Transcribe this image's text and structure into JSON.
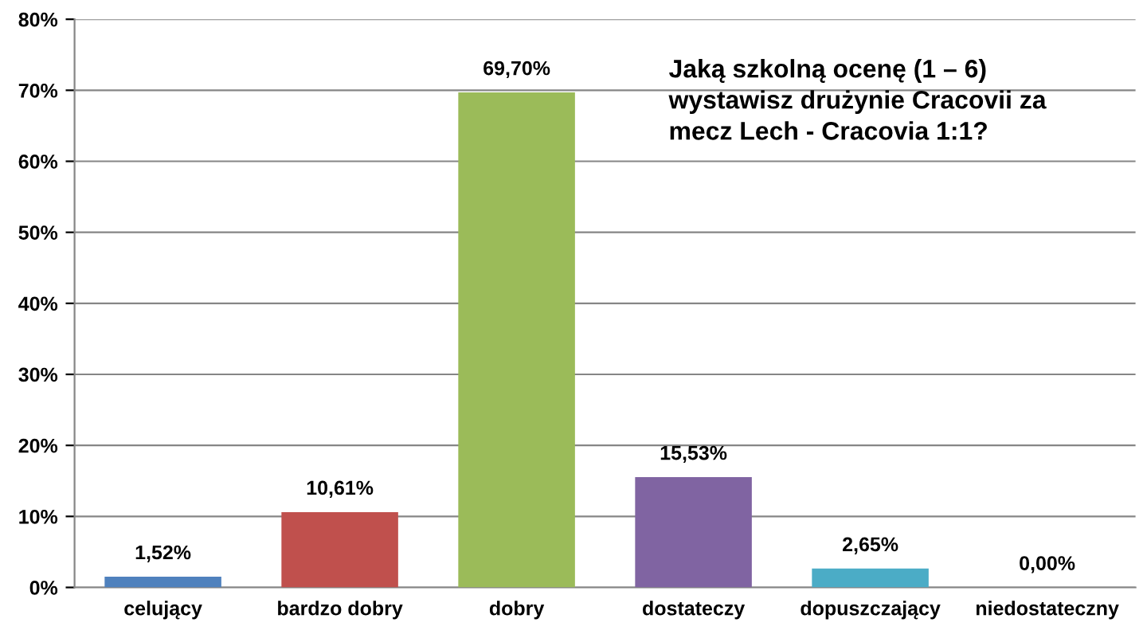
{
  "chart_data": {
    "type": "bar",
    "title": "Jaką szkolną ocenę (1 – 6)\nwystawisz drużynie Cracovii za\nmecz Lech - Cracovia 1:1?",
    "categories": [
      "celujący",
      "bardzo dobry",
      "dobry",
      "dostateczy",
      "dopuszczający",
      "niedostateczny"
    ],
    "values": [
      1.52,
      10.61,
      69.7,
      15.53,
      2.65,
      0
    ],
    "colors": [
      "#4f81bd",
      "#c0504d",
      "#9bbb59",
      "#8064a2",
      "#4bacc6",
      "#f79646"
    ],
    "value_labels": [
      "1,52%",
      "10,61%",
      "69,70%",
      "15,53%",
      "2,65%",
      "0,00%"
    ],
    "ylim": [
      0,
      80
    ],
    "yticks": [
      {
        "value": 0,
        "label": "0%"
      },
      {
        "value": 10,
        "label": "10%"
      },
      {
        "value": 20,
        "label": "20%"
      },
      {
        "value": 30,
        "label": "30%"
      },
      {
        "value": 40,
        "label": "40%"
      },
      {
        "value": 50,
        "label": "50%"
      },
      {
        "value": 60,
        "label": "60%"
      },
      {
        "value": 70,
        "label": "70%"
      },
      {
        "value": 80,
        "label": "80%"
      }
    ],
    "grid": "y"
  }
}
